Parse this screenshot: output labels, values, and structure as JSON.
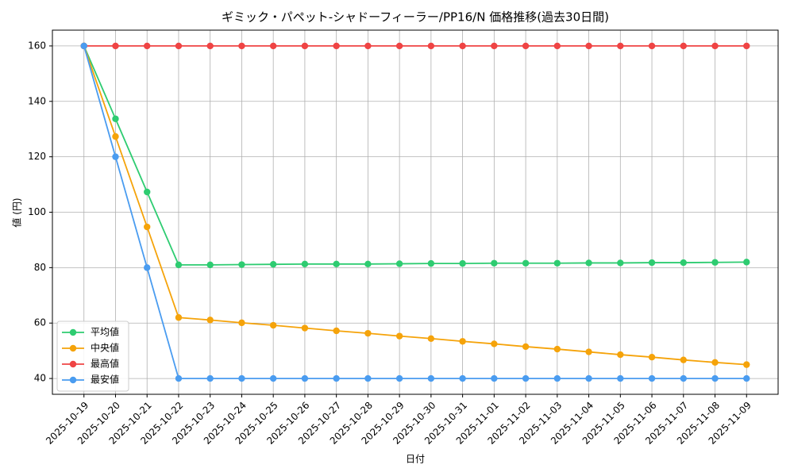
{
  "chart_data": {
    "type": "line",
    "title": "ギミック・パペット-シャドーフィーラー/PP16/N 価格推移(過去30日間)",
    "x_label": "日付",
    "y_label": "値 (円)",
    "categories": [
      "2025-10-19",
      "2025-10-20",
      "2025-10-21",
      "2025-10-22",
      "2025-10-23",
      "2025-10-24",
      "2025-10-25",
      "2025-10-26",
      "2025-10-27",
      "2025-10-28",
      "2025-10-29",
      "2025-10-30",
      "2025-10-31",
      "2025-11-01",
      "2025-11-02",
      "2025-11-03",
      "2025-11-04",
      "2025-11-05",
      "2025-11-06",
      "2025-11-07",
      "2025-11-08",
      "2025-11-09"
    ],
    "series": [
      {
        "name": "平均値",
        "color": "#2ecc71",
        "values": [
          160,
          133.7,
          107.3,
          81,
          81,
          81.1,
          81.2,
          81.3,
          81.3,
          81.3,
          81.4,
          81.5,
          81.5,
          81.6,
          81.6,
          81.6,
          81.7,
          81.7,
          81.8,
          81.8,
          81.9,
          82
        ]
      },
      {
        "name": "中央値",
        "color": "#f5a30a",
        "values": [
          160,
          127.3,
          94.7,
          62,
          61.1,
          60.1,
          59.2,
          58.2,
          57.2,
          56.3,
          55.3,
          54.4,
          53.4,
          52.5,
          51.5,
          50.6,
          49.6,
          48.6,
          47.7,
          46.7,
          45.8,
          45
        ]
      },
      {
        "name": "最高値",
        "color": "#ef4444",
        "values": [
          160,
          160,
          160,
          160,
          160,
          160,
          160,
          160,
          160,
          160,
          160,
          160,
          160,
          160,
          160,
          160,
          160,
          160,
          160,
          160,
          160,
          160
        ]
      },
      {
        "name": "最安値",
        "color": "#4a9cf0",
        "values": [
          160,
          120,
          80,
          40,
          40,
          40,
          40,
          40,
          40,
          40,
          40,
          40,
          40,
          40,
          40,
          40,
          40,
          40,
          40,
          40,
          40,
          40
        ]
      }
    ],
    "ylim": [
      34.3,
      165.7
    ],
    "yticks": [
      40,
      60,
      80,
      100,
      120,
      140,
      160
    ],
    "grid": true,
    "legend": "lower left"
  }
}
